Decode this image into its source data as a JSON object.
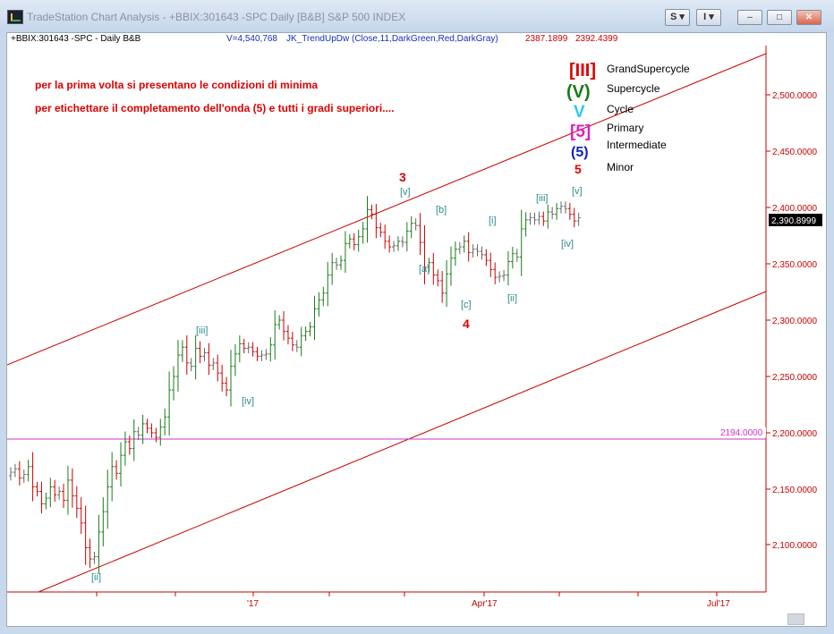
{
  "window": {
    "title": "TradeStation Chart Analysis - +BBIX:301643 -SPC Daily [B&B] S&P 500 INDEX",
    "btn_s": "S ▾",
    "btn_i": "I ▾",
    "min_glyph": "–",
    "max_glyph": "□",
    "close_glyph": "✕"
  },
  "status": {
    "symbol": "+BBIX:301643 -SPC - Daily  B&B",
    "volume": "V=4,540,768",
    "indicator": "JK_TrendUpDw (Close,11,DarkGreen,Red,DarkGray)",
    "v1": "2387.1899",
    "v2": "2392.4399"
  },
  "notes": {
    "line1": "per la prima volta si presentano le condizioni di minima",
    "line2": "per etichettare il completamento dell'onda (5) e tutti i gradi superiori...."
  },
  "legend": [
    {
      "symbol": "[III]",
      "name": "GrandSupercycle",
      "color": "#e00000"
    },
    {
      "symbol": "(V)",
      "name": "Supercycle",
      "color": "#1a7a1a"
    },
    {
      "symbol": "V",
      "name": "Cycle",
      "color": "#2ec8f0"
    },
    {
      "symbol": "[5]",
      "name": "Primary",
      "color": "#e020c0"
    },
    {
      "symbol": "(5)",
      "name": "Intermediate",
      "color": "#1020c0"
    },
    {
      "symbol": "5",
      "name": "Minor",
      "color": "#e00000"
    }
  ],
  "price_axis": [
    "2,500.0000",
    "2,450.0000",
    "2,400.0000",
    "2,350.0000",
    "2,300.0000",
    "2,250.0000",
    "2,200.0000",
    "2,150.0000",
    "2,100.0000"
  ],
  "last_price": "2,390.8999",
  "hline_label": "2194.0000",
  "date_axis": [
    "'17",
    "Apr'17",
    "Jul'17"
  ],
  "wave_labels": {
    "ii": "[ii]",
    "iii": "[iii]",
    "iv": "[iv]",
    "v": "[v]",
    "a": "[a]",
    "b": "[b]",
    "c": "[c]",
    "minor3": "3",
    "minor4": "4",
    "minor5": "5",
    "i2": "[i]",
    "ii2": "[ii]",
    "iii2": "[iii]",
    "iv2": "[iv]",
    "v2": "[v]"
  },
  "colors": {
    "up": "#1a7a1a",
    "down": "#cc0000",
    "neutral": "#666666",
    "channel": "#cc0000",
    "hline": "#cc33cc",
    "wave_label": "#2a8a8a",
    "minor_label": "#e00000"
  },
  "chart_data": {
    "type": "ohlc",
    "symbol": "S&P 500 INDEX",
    "period": "Daily",
    "last_close": 2390.8999,
    "reference_line": 2194.0,
    "y_ticks": [
      2100,
      2150,
      2200,
      2250,
      2300,
      2350,
      2400,
      2450,
      2500
    ],
    "x_ticks": [
      "'17",
      "Apr'17",
      "Jul'17"
    ],
    "closes": [
      2165,
      2168,
      2160,
      2163,
      2170,
      2152,
      2148,
      2137,
      2142,
      2152,
      2145,
      2148,
      2140,
      2158,
      2144,
      2133,
      2120,
      2098,
      2088,
      2090,
      2112,
      2130,
      2152,
      2170,
      2164,
      2180,
      2192,
      2186,
      2201,
      2198,
      2208,
      2204,
      2200,
      2196,
      2205,
      2214,
      2238,
      2250,
      2269,
      2276,
      2262,
      2259,
      2275,
      2268,
      2271,
      2260,
      2262,
      2253,
      2244,
      2238,
      2259,
      2270,
      2279,
      2275,
      2276,
      2272,
      2268,
      2269,
      2270,
      2278,
      2296,
      2300,
      2290,
      2284,
      2278,
      2276,
      2286,
      2290,
      2294,
      2310,
      2318,
      2324,
      2340,
      2351,
      2349,
      2353,
      2368,
      2372,
      2367,
      2374,
      2381,
      2398,
      2394,
      2382,
      2378,
      2370,
      2365,
      2366,
      2370,
      2369,
      2379,
      2386,
      2384,
      2369,
      2347,
      2351,
      2340,
      2335,
      2324,
      2341,
      2355,
      2363,
      2365,
      2370,
      2360,
      2363,
      2361,
      2358,
      2353,
      2345,
      2338,
      2339,
      2340,
      2352,
      2359,
      2356,
      2381,
      2389,
      2391,
      2389,
      2392,
      2388,
      2396,
      2394,
      2399,
      2401,
      2399,
      2394,
      2388,
      2390.9
    ]
  }
}
